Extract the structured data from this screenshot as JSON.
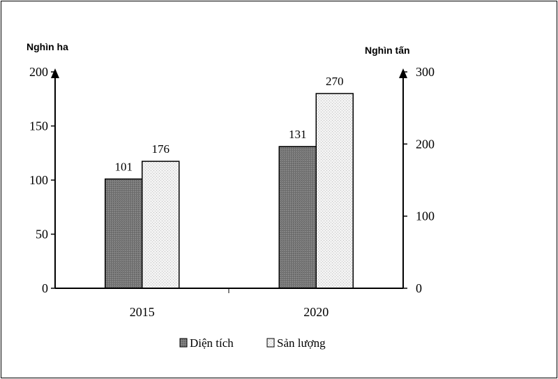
{
  "chart_data": {
    "type": "bar",
    "categories": [
      "2015",
      "2020"
    ],
    "series": [
      {
        "name": "Diện tích",
        "axis": "left",
        "values": [
          101,
          131
        ],
        "data_labels": [
          "101",
          "131"
        ],
        "fill": "dark-gray-hatch"
      },
      {
        "name": "Sản lượng",
        "axis": "right",
        "values": [
          176,
          270
        ],
        "data_labels": [
          "176",
          "270"
        ],
        "fill": "light-dotted"
      }
    ],
    "left_axis": {
      "unit_label": "Nghìn ha",
      "ylim": [
        0,
        200
      ],
      "ticks": [
        0,
        50,
        100,
        150,
        200
      ]
    },
    "right_axis": {
      "unit_label": "Nghìn tấn",
      "ylim": [
        0,
        300
      ],
      "ticks": [
        0,
        100,
        200,
        300
      ]
    },
    "legend_position": "bottom-center",
    "grid": false
  }
}
